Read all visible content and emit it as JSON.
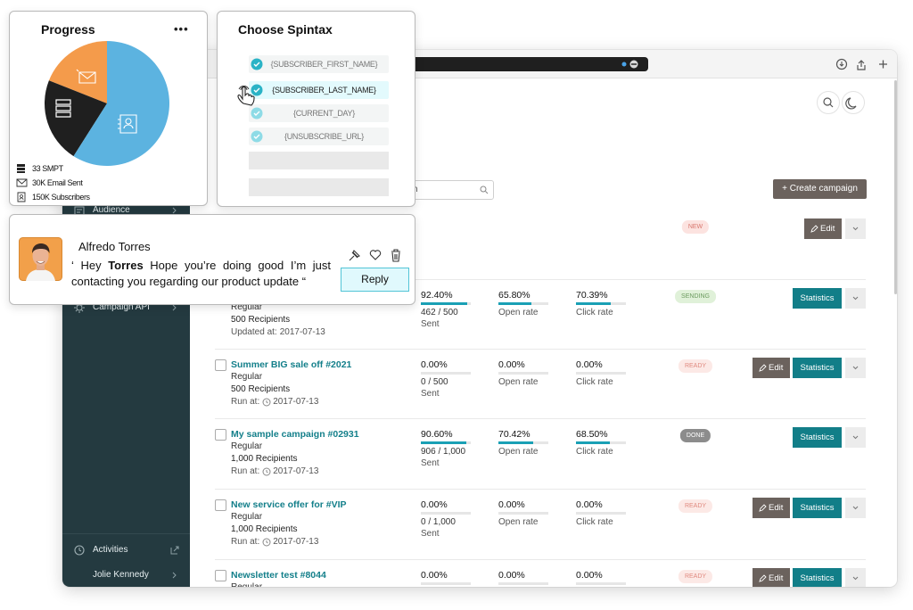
{
  "progress": {
    "title": "Progress",
    "menu": "•••",
    "legend": [
      {
        "label": "33 SMPT",
        "share": 22,
        "color": "#1f1f1f"
      },
      {
        "label": "30K Email Sent",
        "share": 19,
        "color": "#f49b4b"
      },
      {
        "label": "150K Subscribers",
        "share": 59,
        "color": "#5cb3e0"
      }
    ]
  },
  "spintax": {
    "title": "Choose Spintax",
    "options": [
      "{SUBSCRIBER_FIRST_NAME}",
      "{SUBSCRIBER_LAST_NAME}",
      "{CURRENT_DAY}",
      "{UNSUBSCRIBE_URL}"
    ]
  },
  "message": {
    "name": "Alfredo Torres",
    "text": [
      "‘ Hey ",
      "Torres",
      " Hope you’re doing good I’m just contacting you regarding our product update “"
    ],
    "reply": "Reply"
  },
  "sidebar": {
    "items": [
      "Audience",
      "Campaign API",
      "Activities",
      "Jolie Kennedy"
    ]
  },
  "toolbar": {
    "search": "ch",
    "create": "+ Create campaign"
  },
  "metric_captions": {
    "sent": "Sent",
    "open": "Open rate",
    "click": "Click rate"
  },
  "campaigns": [
    {
      "status": {
        "label": "NEW",
        "color": "#d8776e",
        "background": "#fce3e0"
      },
      "edit": "Edit"
    },
    {
      "type": "Regular",
      "recipients": "500 Recipients",
      "date_label": "Updated at:",
      "date": "2017-07-13",
      "sent": {
        "value": 92.4,
        "label": "92.40%"
      },
      "sent_count": "462 / 500",
      "open": {
        "value": 65.8,
        "label": "65.80%"
      },
      "click": {
        "value": 70.39,
        "label": "70.39%"
      },
      "status": {
        "label": "SENDING",
        "color": "#6c9b5f",
        "background": "#e0f1d9"
      },
      "statistics": "Statistics"
    },
    {
      "name": "Summer BIG sale off #2021",
      "type": "Regular",
      "recipients": "500 Recipients",
      "date_label": "Run at:",
      "date": "2017-07-13",
      "sent": {
        "value": 0,
        "label": "0.00%"
      },
      "sent_count": "0 / 500",
      "open": {
        "value": 0,
        "label": "0.00%"
      },
      "click": {
        "value": 0,
        "label": "0.00%"
      },
      "status": {
        "label": "READY",
        "color": "#e0897f",
        "background": "#fce9e6"
      },
      "edit": "Edit",
      "statistics": "Statistics"
    },
    {
      "name": "My sample campaign #02931",
      "type": "Regular",
      "recipients": "1,000 Recipients",
      "date_label": "Run at:",
      "date": "2017-07-13",
      "sent": {
        "value": 90.6,
        "label": "90.60%"
      },
      "sent_count": "906 / 1,000",
      "open": {
        "value": 70.42,
        "label": "70.42%"
      },
      "click": {
        "value": 68.5,
        "label": "68.50%"
      },
      "status": {
        "label": "DONE",
        "color": "#ffffff",
        "background": "#8c8c8c"
      },
      "statistics": "Statistics"
    },
    {
      "name": "New service offer for #VIP",
      "type": "Regular",
      "recipients": "1,000 Recipients",
      "date_label": "Run at:",
      "date": "2017-07-13",
      "sent": {
        "value": 0,
        "label": "0.00%"
      },
      "sent_count": "0 / 1,000",
      "open": {
        "value": 0,
        "label": "0.00%"
      },
      "click": {
        "value": 0,
        "label": "0.00%"
      },
      "status": {
        "label": "READY",
        "color": "#e0897f",
        "background": "#fce9e6"
      },
      "edit": "Edit",
      "statistics": "Statistics"
    },
    {
      "name": "Newsletter test #8044",
      "type": "Regular",
      "sent": {
        "value": 0,
        "label": "0.00%"
      },
      "open": {
        "value": 0,
        "label": "0.00%"
      },
      "click": {
        "value": 0,
        "label": "0.00%"
      },
      "status": {
        "label": "READY",
        "color": "#e0897f",
        "background": "#fce9e6"
      },
      "edit": "Edit",
      "statistics": "Statistics"
    }
  ]
}
